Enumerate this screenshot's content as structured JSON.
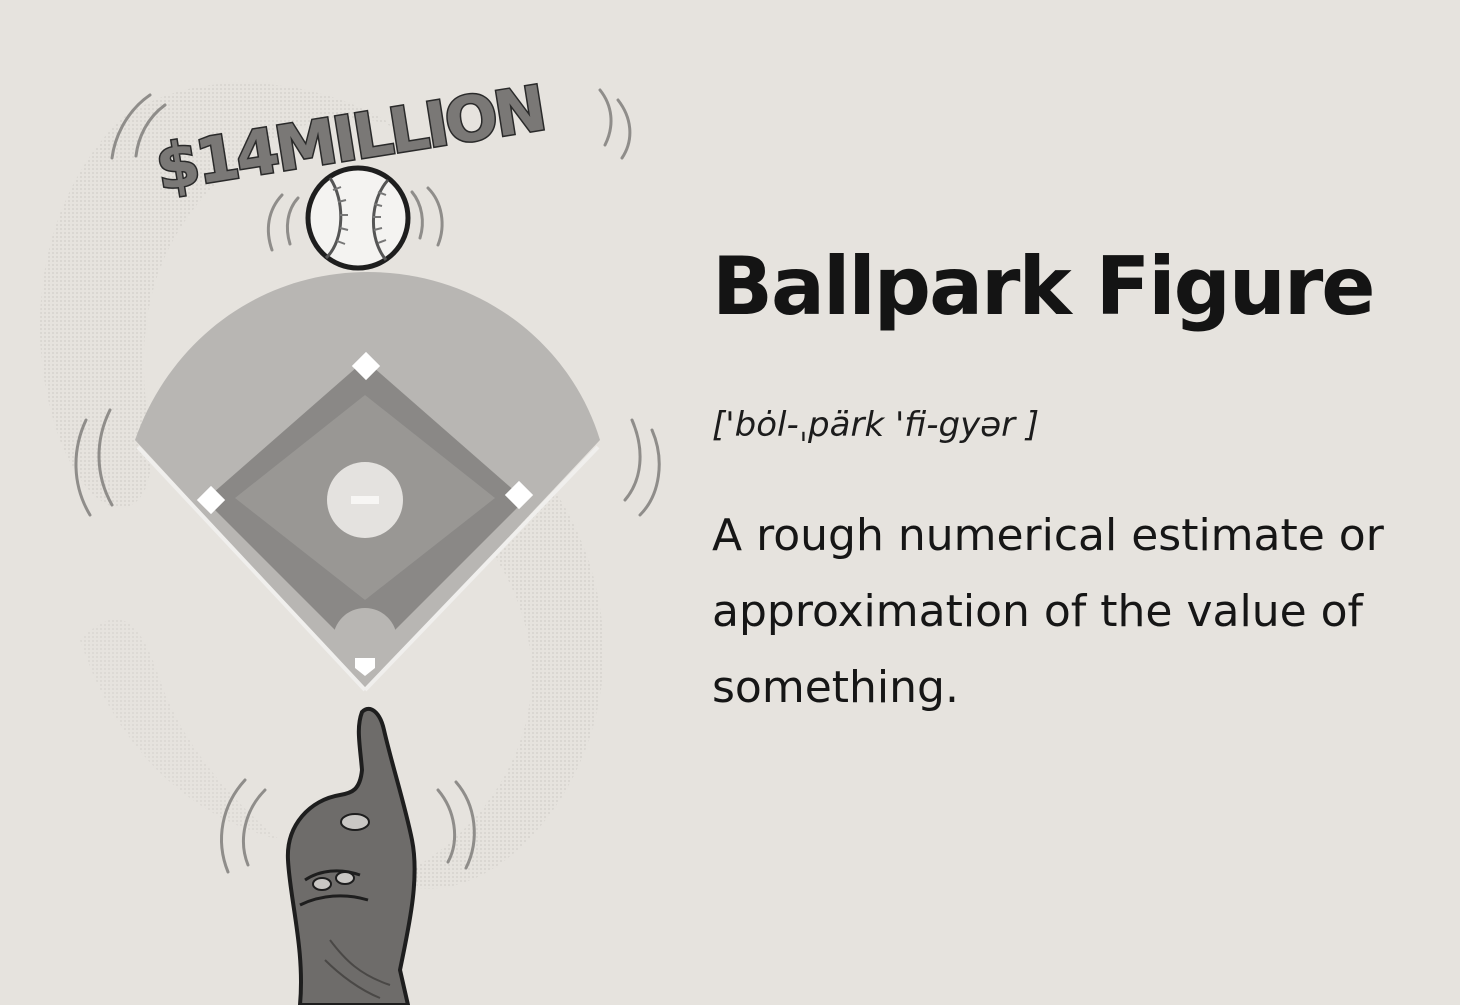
{
  "illustration": {
    "sign_text": "$14MILLION"
  },
  "term": {
    "title": "Ballpark Figure",
    "pronunciation": "['bȯl-ˌpärk 'fi-gyər ]",
    "definition": "A rough numerical estimate or approximation of the value of something."
  },
  "colors": {
    "background": "#e6e3de",
    "text": "#141414",
    "field_outer": "#b5b3b0",
    "infield": "#8a8886",
    "hand": "#6e6c6a"
  },
  "icons": [
    "baseball-icon",
    "baseball-diamond",
    "pointing-hand",
    "motion-lines"
  ]
}
